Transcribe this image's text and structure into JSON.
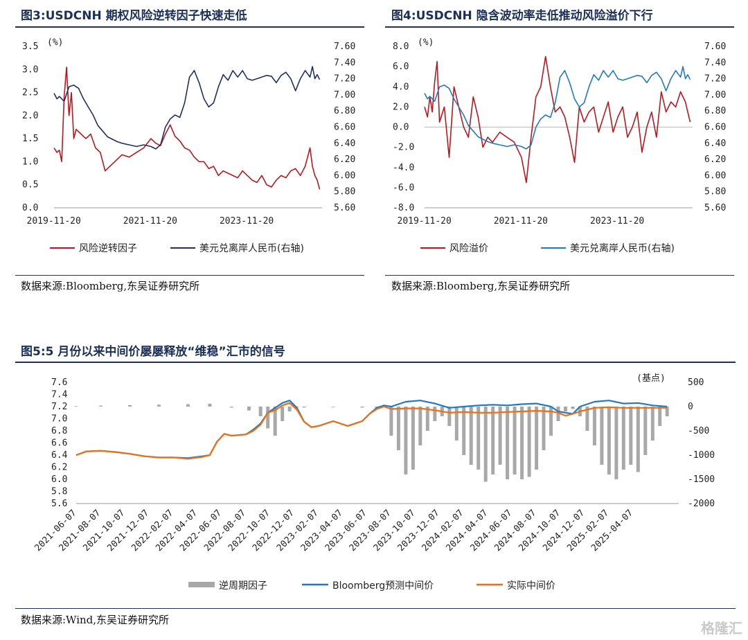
{
  "fig3": {
    "title": "图3:USDCNH 期权风险逆转因子快速走低",
    "source": "数据来源:Bloomberg,东吴证券研究所",
    "chart_data": {
      "type": "line",
      "unit_left": "(%)",
      "left_ticks": [
        "3.5",
        "3.0",
        "2.5",
        "2.0",
        "1.5",
        "1.0",
        "0.5",
        "0.0"
      ],
      "right_ticks": [
        "7.60",
        "7.40",
        "7.20",
        "7.00",
        "6.80",
        "6.60",
        "6.40",
        "6.20",
        "6.00",
        "5.80",
        "5.60"
      ],
      "x_ticks": [
        "2019-11-20",
        "2021-11-20",
        "2023-11-20"
      ],
      "ylim_left": [
        0,
        3.5
      ],
      "ylim_right": [
        5.6,
        7.6
      ],
      "series": [
        {
          "name": "风险逆转因子",
          "axis": "left",
          "color": "#c0141b",
          "x": [
            2019.89,
            2019.95,
            2020.0,
            2020.05,
            2020.1,
            2020.15,
            2020.2,
            2020.25,
            2020.3,
            2020.35,
            2020.45,
            2020.55,
            2020.65,
            2020.75,
            2020.85,
            2020.95,
            2021.05,
            2021.15,
            2021.3,
            2021.45,
            2021.6,
            2021.75,
            2021.9,
            2022.0,
            2022.1,
            2022.2,
            2022.3,
            2022.4,
            2022.5,
            2022.6,
            2022.7,
            2022.8,
            2022.9,
            2023.0,
            2023.1,
            2023.2,
            2023.3,
            2023.4,
            2023.5,
            2023.6,
            2023.7,
            2023.8,
            2023.9,
            2024.0,
            2024.1,
            2024.2,
            2024.3,
            2024.4,
            2024.5,
            2024.6,
            2024.7,
            2024.8,
            2024.9,
            2025.0,
            2025.1,
            2025.2,
            2025.25,
            2025.3,
            2025.35,
            2025.4
          ],
          "values": [
            1.3,
            1.2,
            1.25,
            1.0,
            2.4,
            3.05,
            2.0,
            2.5,
            1.5,
            1.7,
            1.6,
            1.5,
            1.6,
            1.3,
            1.2,
            0.8,
            0.9,
            1.0,
            1.15,
            1.1,
            1.2,
            1.3,
            1.5,
            1.4,
            1.35,
            1.6,
            1.8,
            1.55,
            1.45,
            1.3,
            1.25,
            1.1,
            1.0,
            1.0,
            0.85,
            0.9,
            0.7,
            0.8,
            0.75,
            0.7,
            0.65,
            0.8,
            0.7,
            0.6,
            0.55,
            0.7,
            0.5,
            0.45,
            0.6,
            0.7,
            0.65,
            0.8,
            0.85,
            0.7,
            0.9,
            1.3,
            0.9,
            0.7,
            0.6,
            0.4
          ]
        },
        {
          "name": "美元兑离岸人民币(右轴)",
          "axis": "right",
          "color": "#1c2f66",
          "x": [
            2019.89,
            2019.95,
            2020.0,
            2020.1,
            2020.2,
            2020.3,
            2020.4,
            2020.5,
            2020.6,
            2020.7,
            2020.8,
            2020.9,
            2021.0,
            2021.1,
            2021.2,
            2021.3,
            2021.45,
            2021.6,
            2021.75,
            2021.9,
            2022.0,
            2022.1,
            2022.2,
            2022.3,
            2022.4,
            2022.5,
            2022.6,
            2022.7,
            2022.8,
            2022.9,
            2023.0,
            2023.1,
            2023.2,
            2023.3,
            2023.4,
            2023.5,
            2023.6,
            2023.7,
            2023.8,
            2023.9,
            2024.0,
            2024.1,
            2024.2,
            2024.3,
            2024.4,
            2024.5,
            2024.6,
            2024.7,
            2024.8,
            2024.9,
            2025.0,
            2025.1,
            2025.2,
            2025.25,
            2025.3,
            2025.35,
            2025.4
          ],
          "values": [
            7.02,
            6.95,
            6.98,
            6.92,
            7.1,
            7.12,
            7.08,
            6.95,
            6.85,
            6.75,
            6.62,
            6.55,
            6.48,
            6.45,
            6.42,
            6.4,
            6.38,
            6.36,
            6.38,
            6.36,
            6.33,
            6.38,
            6.6,
            6.7,
            6.75,
            6.72,
            6.9,
            7.22,
            7.3,
            7.15,
            6.95,
            6.85,
            6.9,
            7.1,
            7.25,
            7.18,
            7.3,
            7.22,
            7.3,
            7.2,
            7.18,
            7.2,
            7.22,
            7.24,
            7.23,
            7.15,
            7.24,
            7.28,
            7.2,
            7.05,
            7.2,
            7.3,
            7.22,
            7.35,
            7.2,
            7.25,
            7.19
          ]
        }
      ]
    },
    "legend": [
      "风险逆转因子",
      "美元兑离岸人民币(右轴)"
    ]
  },
  "fig4": {
    "title": "图4:USDCNH 隐含波动率走低推动风险溢价下行",
    "source": "数据来源:Bloomberg,东吴证券研究所",
    "chart_data": {
      "type": "line",
      "unit_left": "(%)",
      "left_ticks": [
        "8.0",
        "6.0",
        "4.0",
        "2.0",
        "0.0",
        "-2.0",
        "-4.0",
        "-6.0",
        "-8.0"
      ],
      "right_ticks": [
        "7.60",
        "7.40",
        "7.20",
        "7.00",
        "6.80",
        "6.60",
        "6.40",
        "6.20",
        "6.00",
        "5.80",
        "5.60"
      ],
      "x_ticks": [
        "2019-11-20",
        "2021-11-20",
        "2023-11-20"
      ],
      "ylim_left": [
        -8,
        8
      ],
      "ylim_right": [
        5.6,
        7.6
      ],
      "series": [
        {
          "name": "风险溢价",
          "axis": "left",
          "color": "#c0141b",
          "x": [
            2019.89,
            2019.95,
            2020.0,
            2020.05,
            2020.1,
            2020.15,
            2020.2,
            2020.3,
            2020.4,
            2020.5,
            2020.6,
            2020.7,
            2020.8,
            2020.9,
            2021.0,
            2021.1,
            2021.2,
            2021.3,
            2021.45,
            2021.6,
            2021.75,
            2021.9,
            2022.0,
            2022.1,
            2022.2,
            2022.3,
            2022.4,
            2022.5,
            2022.6,
            2022.7,
            2022.8,
            2022.9,
            2023.0,
            2023.1,
            2023.2,
            2023.3,
            2023.4,
            2023.5,
            2023.6,
            2023.7,
            2023.8,
            2023.9,
            2024.0,
            2024.1,
            2024.2,
            2024.3,
            2024.4,
            2024.5,
            2024.6,
            2024.7,
            2024.8,
            2024.9,
            2025.0,
            2025.1,
            2025.2,
            2025.3,
            2025.35,
            2025.4
          ],
          "values": [
            2.0,
            1.0,
            3.0,
            1.5,
            4.5,
            6.5,
            0.5,
            2.0,
            -3.0,
            4.0,
            2.0,
            0.0,
            -1.0,
            3.0,
            1.0,
            -2.0,
            -1.0,
            -1.5,
            -0.5,
            -1.0,
            -1.5,
            -3.0,
            -5.5,
            -1.0,
            3.0,
            4.0,
            7.0,
            4.0,
            1.5,
            2.0,
            1.0,
            -1.0,
            -3.5,
            2.0,
            0.5,
            1.5,
            2.0,
            -0.5,
            1.0,
            2.5,
            -0.5,
            1.0,
            2.0,
            -1.0,
            0.0,
            1.5,
            -2.5,
            0.0,
            1.5,
            -1.0,
            3.5,
            1.5,
            2.5,
            2.0,
            3.5,
            2.5,
            1.5,
            0.5
          ]
        },
        {
          "name": "美元兑离岸人民币(右轴)",
          "axis": "right",
          "color": "#1f78c8",
          "x": [
            2019.89,
            2019.95,
            2020.0,
            2020.1,
            2020.2,
            2020.3,
            2020.4,
            2020.5,
            2020.6,
            2020.7,
            2020.8,
            2020.9,
            2021.0,
            2021.1,
            2021.2,
            2021.3,
            2021.45,
            2021.6,
            2021.75,
            2021.9,
            2022.0,
            2022.1,
            2022.2,
            2022.3,
            2022.4,
            2022.5,
            2022.6,
            2022.7,
            2022.8,
            2022.9,
            2023.0,
            2023.1,
            2023.2,
            2023.3,
            2023.4,
            2023.5,
            2023.6,
            2023.7,
            2023.8,
            2023.9,
            2024.0,
            2024.1,
            2024.2,
            2024.3,
            2024.4,
            2024.5,
            2024.6,
            2024.7,
            2024.8,
            2024.9,
            2025.0,
            2025.1,
            2025.2,
            2025.25,
            2025.3,
            2025.35,
            2025.4
          ],
          "values": [
            7.02,
            6.95,
            6.98,
            6.92,
            7.1,
            7.12,
            7.08,
            6.95,
            6.85,
            6.75,
            6.62,
            6.55,
            6.48,
            6.45,
            6.42,
            6.4,
            6.38,
            6.36,
            6.38,
            6.36,
            6.33,
            6.38,
            6.6,
            6.7,
            6.75,
            6.72,
            6.9,
            7.22,
            7.3,
            7.15,
            6.95,
            6.85,
            6.9,
            7.1,
            7.25,
            7.18,
            7.3,
            7.22,
            7.3,
            7.2,
            7.18,
            7.2,
            7.22,
            7.24,
            7.23,
            7.15,
            7.24,
            7.28,
            7.2,
            7.05,
            7.2,
            7.3,
            7.22,
            7.35,
            7.2,
            7.25,
            7.19
          ]
        }
      ]
    },
    "legend": [
      "风险溢价",
      "美元兑离岸人民币(右轴)"
    ]
  },
  "fig5": {
    "title": "图5:5 月份以来中间价屡屡释放“维稳”汇市的信号",
    "source": "数据来源:Wind,东吴证券研究所",
    "chart_data": {
      "type": "line",
      "unit_right": "(基点)",
      "left_ticks": [
        "7.6",
        "7.4",
        "7.2",
        "7.0",
        "6.8",
        "6.6",
        "6.4",
        "6.2",
        "6.0",
        "5.8",
        "5.6"
      ],
      "right_ticks": [
        "500",
        "0",
        "-500",
        "-1000",
        "-1500",
        "-2000"
      ],
      "x_ticks": [
        "2021-06-07",
        "2021-08-07",
        "2021-10-07",
        "2021-12-07",
        "2022-02-07",
        "2022-04-07",
        "2022-06-07",
        "2022-08-07",
        "2022-10-07",
        "2022-12-07",
        "2023-02-07",
        "2023-04-07",
        "2023-06-07",
        "2023-08-07",
        "2023-10-07",
        "2023-12-07",
        "2024-02-07",
        "2024-04-07",
        "2024-06-07",
        "2024-08-07",
        "2024-10-07",
        "2024-12-07",
        "2025-02-07",
        "2025-04-07"
      ],
      "ylim_left": [
        5.6,
        7.6
      ],
      "ylim_right": [
        -2000,
        500
      ],
      "series": [
        {
          "name": "逆周期因子",
          "axis": "right",
          "color": "#a8a8a8",
          "type": "bar",
          "x": [
            2021.43,
            2021.6,
            2021.8,
            2022.0,
            2022.2,
            2022.35,
            2022.5,
            2022.62,
            2022.7,
            2022.75,
            2022.8,
            2022.85,
            2022.9,
            2022.95,
            2023.0,
            2023.2,
            2023.4,
            2023.5,
            2023.6,
            2023.65,
            2023.7,
            2023.75,
            2023.8,
            2023.85,
            2023.9,
            2023.95,
            2024.0,
            2024.05,
            2024.1,
            2024.15,
            2024.2,
            2024.25,
            2024.3,
            2024.35,
            2024.4,
            2024.45,
            2024.5,
            2024.55,
            2024.6,
            2024.65,
            2024.7,
            2024.75,
            2024.8,
            2024.85,
            2024.9,
            2024.95,
            2025.0,
            2025.05,
            2025.1,
            2025.15,
            2025.2,
            2025.25,
            2025.3,
            2025.35,
            2025.4,
            2025.45,
            2025.5
          ],
          "values": [
            10,
            20,
            30,
            40,
            50,
            60,
            -20,
            -80,
            -200,
            -450,
            -600,
            -300,
            -100,
            0,
            -20,
            -10,
            -20,
            -50,
            -600,
            -900,
            -1400,
            -1300,
            -800,
            -500,
            -300,
            -200,
            -400,
            -700,
            -1000,
            -1200,
            -1300,
            -1550,
            -1400,
            -1200,
            -1500,
            -1400,
            -1500,
            -1450,
            -1300,
            -900,
            -600,
            -300,
            -100,
            -50,
            -200,
            -500,
            -800,
            -1200,
            -1400,
            -1500,
            -1300,
            -1200,
            -1350,
            -1000,
            -700,
            -400,
            -200
          ]
        },
        {
          "name": "Bloomberg预测中间价",
          "axis": "left",
          "color": "#1f78c8",
          "x": [
            2021.43,
            2021.5,
            2021.6,
            2021.7,
            2021.8,
            2021.9,
            2022.0,
            2022.1,
            2022.2,
            2022.3,
            2022.35,
            2022.4,
            2022.45,
            2022.5,
            2022.6,
            2022.65,
            2022.7,
            2022.75,
            2022.8,
            2022.85,
            2022.9,
            2022.95,
            2023.0,
            2023.05,
            2023.1,
            2023.2,
            2023.3,
            2023.4,
            2023.45,
            2023.5,
            2023.55,
            2023.6,
            2023.7,
            2023.8,
            2023.9,
            2024.0,
            2024.1,
            2024.2,
            2024.3,
            2024.4,
            2024.5,
            2024.6,
            2024.7,
            2024.75,
            2024.8,
            2024.85,
            2024.9,
            2025.0,
            2025.1,
            2025.2,
            2025.3,
            2025.4,
            2025.5
          ],
          "values": [
            6.4,
            6.46,
            6.47,
            6.45,
            6.42,
            6.38,
            6.36,
            6.36,
            6.35,
            6.38,
            6.4,
            6.62,
            6.75,
            6.72,
            6.74,
            6.82,
            6.92,
            7.1,
            7.18,
            7.26,
            7.3,
            7.18,
            6.95,
            6.86,
            6.88,
            6.96,
            6.88,
            6.96,
            7.08,
            7.18,
            7.22,
            7.2,
            7.28,
            7.3,
            7.25,
            7.18,
            7.2,
            7.22,
            7.23,
            7.22,
            7.24,
            7.25,
            7.2,
            7.12,
            7.1,
            7.08,
            7.2,
            7.28,
            7.3,
            7.25,
            7.26,
            7.22,
            7.2
          ]
        },
        {
          "name": "实际中间价",
          "axis": "left",
          "color": "#f06d10",
          "x": [
            2021.43,
            2021.5,
            2021.6,
            2021.7,
            2021.8,
            2021.9,
            2022.0,
            2022.1,
            2022.2,
            2022.3,
            2022.35,
            2022.4,
            2022.45,
            2022.5,
            2022.6,
            2022.65,
            2022.7,
            2022.75,
            2022.8,
            2022.85,
            2022.9,
            2022.95,
            2023.0,
            2023.05,
            2023.1,
            2023.2,
            2023.3,
            2023.4,
            2023.45,
            2023.5,
            2023.55,
            2023.6,
            2023.7,
            2023.8,
            2023.9,
            2024.0,
            2024.1,
            2024.2,
            2024.3,
            2024.4,
            2024.5,
            2024.6,
            2024.7,
            2024.75,
            2024.8,
            2024.85,
            2024.9,
            2025.0,
            2025.1,
            2025.2,
            2025.3,
            2025.4,
            2025.5
          ],
          "values": [
            6.4,
            6.46,
            6.47,
            6.45,
            6.42,
            6.38,
            6.36,
            6.36,
            6.34,
            6.37,
            6.4,
            6.62,
            6.75,
            6.72,
            6.74,
            6.8,
            6.9,
            7.1,
            7.14,
            7.22,
            7.26,
            7.15,
            6.95,
            6.86,
            6.88,
            6.96,
            6.88,
            6.96,
            7.08,
            7.16,
            7.2,
            7.16,
            7.17,
            7.17,
            7.14,
            7.1,
            7.11,
            7.1,
            7.1,
            7.11,
            7.12,
            7.13,
            7.12,
            7.1,
            7.05,
            7.08,
            7.12,
            7.18,
            7.19,
            7.18,
            7.18,
            7.18,
            7.18
          ]
        }
      ]
    },
    "legend": [
      "逆周期因子",
      "Bloomberg预测中间价",
      "实际中间价"
    ]
  },
  "watermark": "格隆汇"
}
